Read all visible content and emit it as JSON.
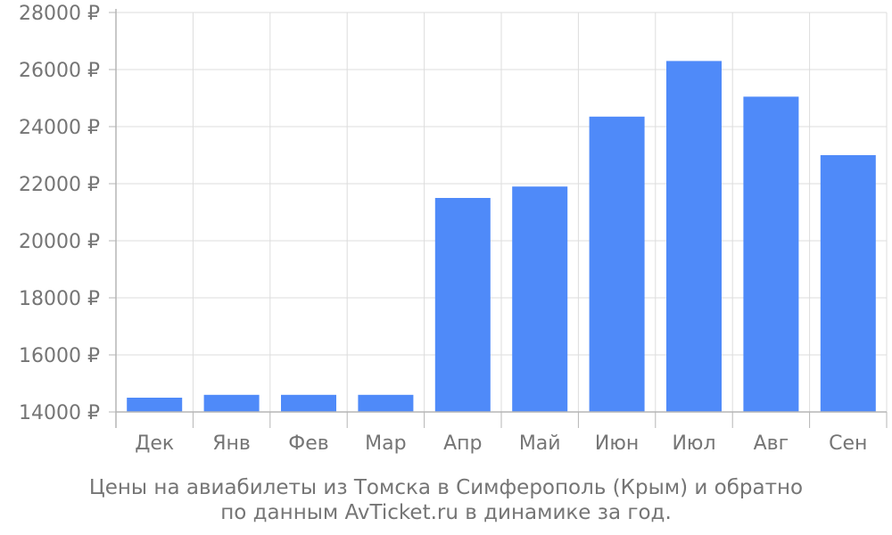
{
  "chart_data": {
    "type": "bar",
    "categories": [
      "Дек",
      "Янв",
      "Фев",
      "Мар",
      "Апр",
      "Май",
      "Июн",
      "Июл",
      "Авг",
      "Сен"
    ],
    "values": [
      14500,
      14600,
      14600,
      14600,
      21500,
      21900,
      24350,
      26300,
      25050,
      23000
    ],
    "y_ticks": [
      "14000 ₽",
      "16000 ₽",
      "18000 ₽",
      "20000 ₽",
      "22000 ₽",
      "24000 ₽",
      "26000 ₽",
      "28000 ₽"
    ],
    "ylim": [
      14000,
      28000
    ],
    "grid": true,
    "bar_color": "#4f8af9",
    "grid_color": "#dddddd",
    "axis_color": "#b5b5b5",
    "text_color": "#757575"
  },
  "caption": {
    "line1": "Цены на авиабилеты из Томска в Симферополь (Крым) и обратно",
    "line2": "по данным AvTicket.ru в динамике за год."
  }
}
